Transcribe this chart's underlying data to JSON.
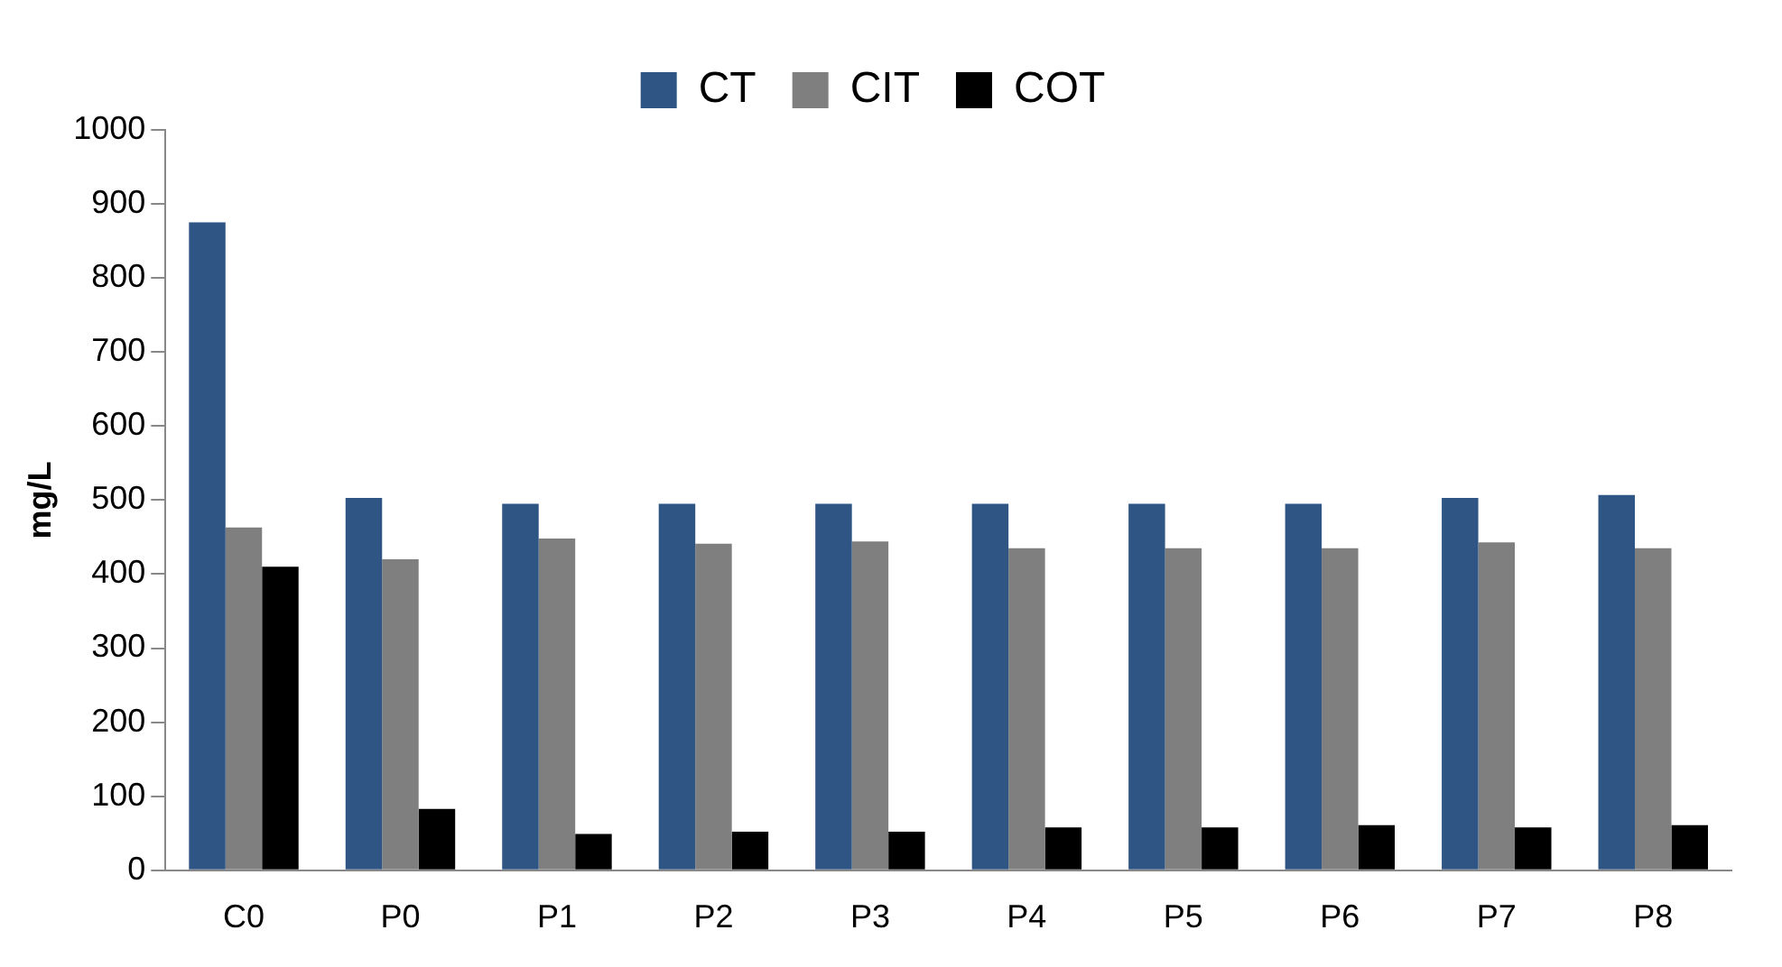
{
  "chart_data": {
    "type": "bar",
    "ylabel": "mg/L",
    "categories": [
      "C0",
      "P0",
      "P1",
      "P2",
      "P3",
      "P4",
      "P5",
      "P6",
      "P7",
      "P8"
    ],
    "series": [
      {
        "name": "CT",
        "color": "#2f5585",
        "values": [
          875,
          503,
          495,
          495,
          495,
          495,
          495,
          495,
          503,
          507
        ]
      },
      {
        "name": "CIT",
        "color": "#7f7f7f",
        "values": [
          463,
          420,
          448,
          441,
          444,
          435,
          435,
          435,
          443,
          435
        ]
      },
      {
        "name": "COT",
        "color": "#000000",
        "values": [
          410,
          83,
          49,
          52,
          52,
          58,
          58,
          61,
          58,
          61
        ]
      }
    ],
    "ylim": [
      0,
      1000
    ],
    "yticks": [
      0,
      100,
      200,
      300,
      400,
      500,
      600,
      700,
      800,
      900,
      1000
    ],
    "grid": false,
    "legend": "top"
  }
}
